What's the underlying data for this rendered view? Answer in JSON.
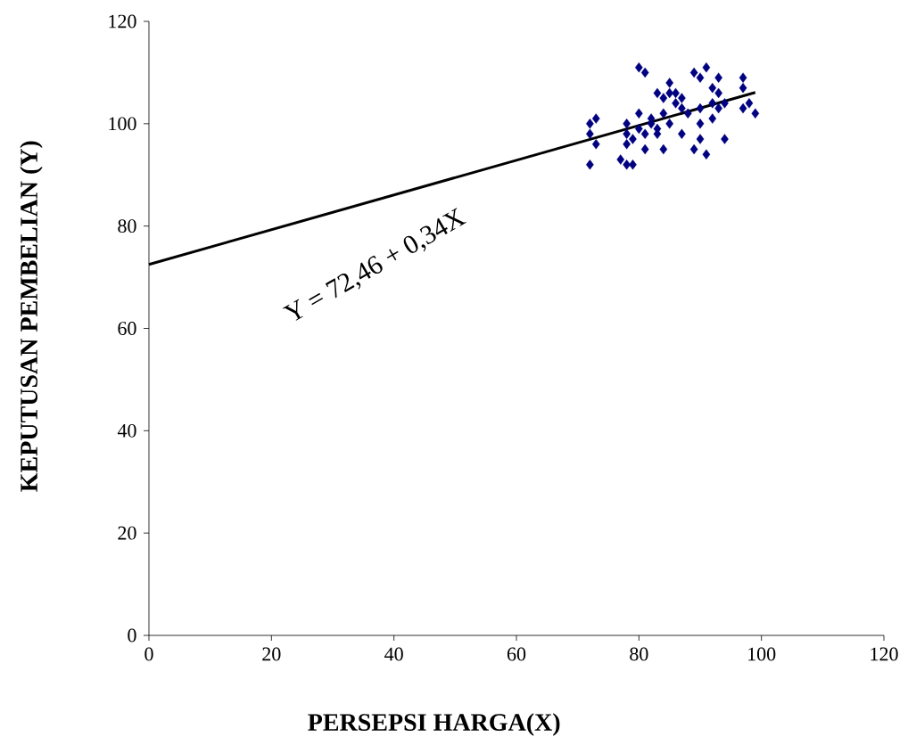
{
  "chart_data": {
    "type": "scatter",
    "xlabel": "PERSEPSI HARGA(X)",
    "ylabel": "KEPUTUSAN PEMBELIAN (Y)",
    "annotations": [
      "Y = 72,46 + 0,34X"
    ],
    "xlim": [
      0,
      120
    ],
    "ylim": [
      0,
      120
    ],
    "xticks": [
      0,
      20,
      40,
      60,
      80,
      100,
      120
    ],
    "yticks": [
      0,
      20,
      40,
      60,
      80,
      100,
      120
    ],
    "grid": false,
    "series": [
      {
        "color": "#000080",
        "marker": "diamond",
        "x": [
          72,
          72,
          72,
          73,
          73,
          77,
          78,
          78,
          78,
          78,
          79,
          79,
          80,
          80,
          80,
          81,
          81,
          81,
          82,
          82,
          83,
          83,
          83,
          84,
          84,
          84,
          85,
          85,
          85,
          86,
          86,
          87,
          87,
          87,
          88,
          89,
          89,
          90,
          90,
          90,
          90,
          91,
          91,
          92,
          92,
          92,
          93,
          93,
          93,
          94,
          94,
          97,
          97,
          97,
          98,
          99
        ],
        "values": [
          92,
          98,
          100,
          101,
          96,
          93,
          92,
          96,
          98,
          100,
          92,
          97,
          99,
          102,
          111,
          110,
          95,
          98,
          101,
          100,
          99,
          98,
          106,
          95,
          102,
          105,
          108,
          106,
          100,
          104,
          106,
          105,
          98,
          103,
          102,
          110,
          95,
          109,
          103,
          100,
          97,
          111,
          94,
          107,
          101,
          104,
          109,
          106,
          103,
          97,
          104,
          109,
          107,
          103,
          104,
          102
        ]
      },
      {
        "type": "line",
        "color": "#000000",
        "marker": "none",
        "line_style": "solid",
        "x": [
          0,
          99
        ],
        "values": [
          72.5,
          106.1
        ]
      }
    ]
  }
}
